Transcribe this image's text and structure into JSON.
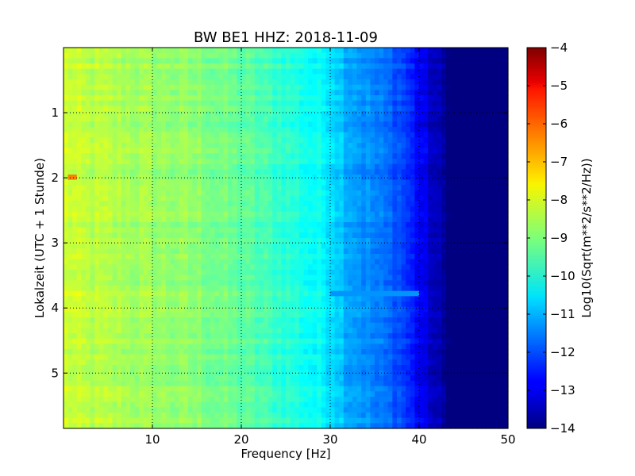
{
  "chart_data": {
    "type": "heatmap",
    "title": "BW BE1 HHZ: 2018-11-09",
    "xlabel": "Frequency [Hz]",
    "ylabel": "Lokalzeit (UTC + 1 Stunde)",
    "xlim": [
      0,
      50
    ],
    "ylim": [
      5.85,
      0
    ],
    "x_ticks": [
      10,
      20,
      30,
      40,
      50
    ],
    "x_tick_labels": [
      "10",
      "20",
      "30",
      "40",
      "50"
    ],
    "y_ticks": [
      1,
      2,
      3,
      4,
      5
    ],
    "y_tick_labels": [
      "1",
      "2",
      "3",
      "4",
      "5"
    ],
    "grid": true,
    "colormap": "jet",
    "colorbar": {
      "label": "Log10(Sqrt(m**2/s**2/Hz))",
      "range": [
        -14,
        -4
      ],
      "ticks": [
        -4,
        -5,
        -6,
        -7,
        -8,
        -9,
        -10,
        -11,
        -12,
        -13,
        -14
      ],
      "tick_labels": [
        "−4",
        "−5",
        "−6",
        "−7",
        "−8",
        "−9",
        "−10",
        "−11",
        "−12",
        "−13",
        "−14"
      ]
    },
    "spectrum_profile": {
      "frequency_hz": [
        0,
        2,
        5,
        10,
        15,
        20,
        25,
        30,
        32,
        35,
        38,
        40,
        42,
        43.5,
        50
      ],
      "log10_psd": [
        -8.2,
        -8.4,
        -8.5,
        -8.7,
        -8.9,
        -9.3,
        -9.8,
        -10.4,
        -11.0,
        -11.5,
        -12.0,
        -12.8,
        -13.5,
        -14.0,
        -14.0
      ]
    },
    "features": [
      {
        "frequency_hz": [
          0.3,
          1.7
        ],
        "time_h": [
          1.92,
          2.02
        ],
        "log10_psd": -6.5
      },
      {
        "frequency_hz": [
          30,
          40
        ],
        "time_h": [
          3.7,
          3.8
        ],
        "log10_psd": -11.3
      }
    ]
  }
}
